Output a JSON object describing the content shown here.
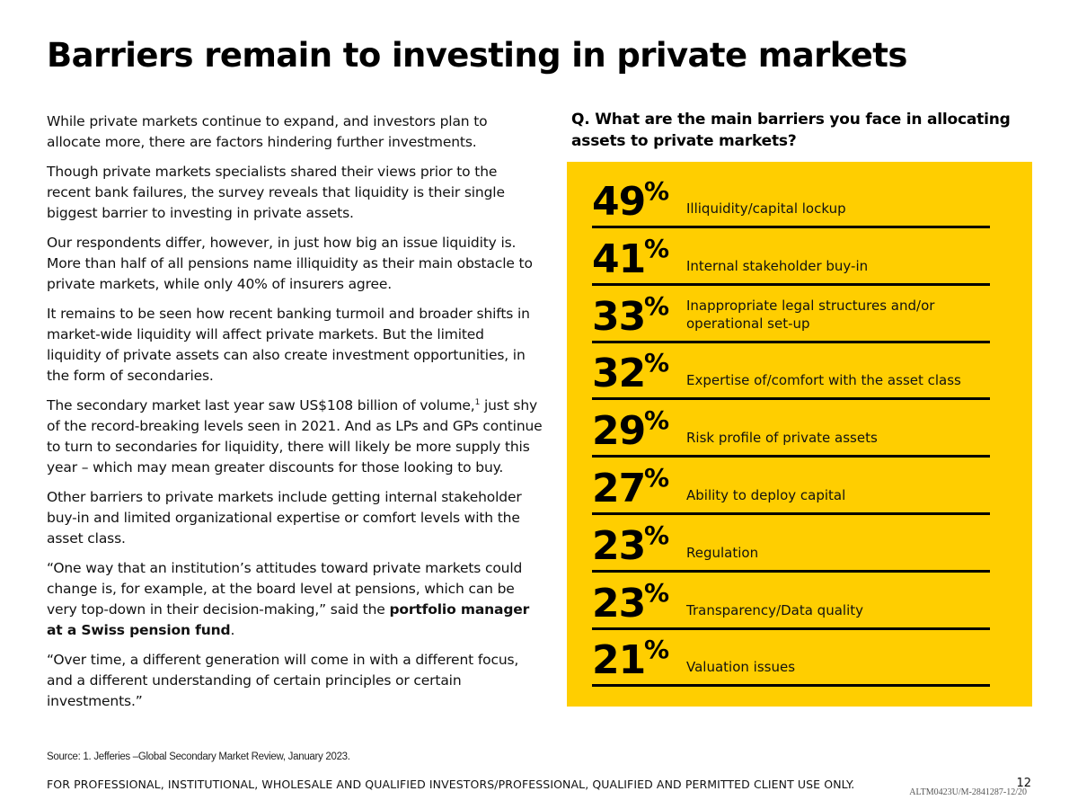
{
  "title": "Barriers remain to investing in private markets",
  "body": {
    "p1": "While private markets continue to expand, and investors plan to allocate more, there are factors hindering further investments.",
    "p2": "Though private markets specialists shared their views prior to the recent bank failures, the survey reveals that liquidity is their single biggest barrier to investing in private assets.",
    "p3": "Our respondents differ, however, in just how big an issue liquidity is. More than half of all pensions name illiquidity as their main obstacle to private markets, while only 40% of insurers agree.",
    "p4": "It remains to be seen how recent banking turmoil and broader shifts in market-wide liquidity will affect private markets. But the limited liquidity of private assets can also create investment opportunities, in the form of secondaries.",
    "p5": "The secondary market last year saw US$108 billion of volume,",
    "p5_ref": "1",
    "p5_cont": " just shy of the record-breaking levels seen in 2021. And as LPs and GPs continue to turn to secondaries for liquidity, there will likely be more supply this year – which may mean greater discounts for those looking to buy.",
    "p6": "Other barriers to private markets include getting internal stakeholder buy-in and limited organizational expertise or comfort levels with the asset class.",
    "p7": "“One way that an institution’s attitudes toward private markets could change is, for example, at the board level at pensions, which can be very top-down in their decision-making,” said the ",
    "p7_bold": "portfolio manager at a Swiss pension fund",
    "p7_end": ".",
    "p8": "“Over time, a different generation will come in with a different focus, and a different understanding of certain principles or certain investments.”"
  },
  "question": "Q. What are the main barriers you face in allocating assets to private markets?",
  "panel_color": "#FFCE00",
  "percent_sign": "%",
  "barriers": [
    {
      "value": "49",
      "label": "Illiquidity/capital lockup"
    },
    {
      "value": "41",
      "label": "Internal stakeholder buy-in"
    },
    {
      "value": "33",
      "label": "Inappropriate legal structures and/or operational set-up"
    },
    {
      "value": "32",
      "label": "Expertise of/comfort with the asset class"
    },
    {
      "value": "29",
      "label": "Risk profile of private assets"
    },
    {
      "value": "27",
      "label": "Ability to deploy capital"
    },
    {
      "value": "23",
      "label": "Regulation"
    },
    {
      "value": "23",
      "label": "Transparency/Data quality"
    },
    {
      "value": "21",
      "label": "Valuation issues"
    }
  ],
  "source": "Source: 1. Jefferies –Global Secondary Market Review, January 2023.",
  "footer": "FOR PROFESSIONAL, INSTITUTIONAL, WHOLESALE AND QUALIFIED INVESTORS/PROFESSIONAL, QUALIFIED AND PERMITTED CLIENT USE ONLY.",
  "page_number": "12",
  "doc_code": "ALTM0423U/M-2841287-12/20"
}
